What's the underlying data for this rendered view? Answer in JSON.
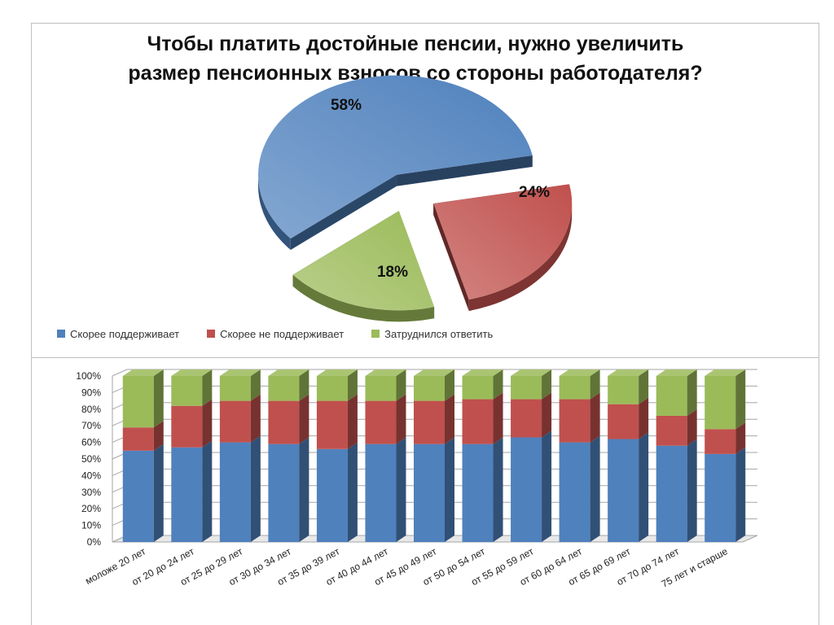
{
  "title_lines": [
    "Чтобы платить достойные пенсии, нужно увеличить",
    "размер пенсионных взносов со стороны работодателя?"
  ],
  "legend": [
    {
      "label": "Скорее поддерживает",
      "color": "#4F81BD"
    },
    {
      "label": "Скорее не поддерживает",
      "color": "#C0504D"
    },
    {
      "label": "Затруднился ответить",
      "color": "#9BBB59"
    }
  ],
  "chart_data": [
    {
      "type": "pie",
      "title": "Чтобы платить достойные пенсии, нужно увеличить размер пенсионных взносов со стороны работодателя?",
      "slices": [
        {
          "label": "Скорее поддерживает",
          "value": 58,
          "display": "58%",
          "color": "#4F81BD"
        },
        {
          "label": "Скорее не поддерживает",
          "value": 24,
          "display": "24%",
          "color": "#C0504D"
        },
        {
          "label": "Затруднился ответить",
          "value": 18,
          "display": "18%",
          "color": "#9BBB59"
        }
      ],
      "exploded": true,
      "legend_position": "bottom"
    },
    {
      "type": "bar",
      "stacked": "percent",
      "categories": [
        "моложе 20 лет",
        "от 20 до 24 лет",
        "от 25 до 29 лет",
        "от 30 до 34 лет",
        "от 35 до 39 лет",
        "от 40 до 44 лет",
        "от 45 до 49 лет",
        "от 50 до 54 лет",
        "от 55 до 59 лет",
        "от 60 до 64 лет",
        "от 65 до 69 лет",
        "от 70 до 74 лет",
        "75 лет и старше"
      ],
      "series": [
        {
          "name": "Скорее поддерживает",
          "color": "#4F81BD",
          "values": [
            55,
            57,
            60,
            59,
            56,
            59,
            59,
            59,
            63,
            60,
            62,
            58,
            53
          ]
        },
        {
          "name": "Скорее не поддерживает",
          "color": "#C0504D",
          "values": [
            14,
            25,
            25,
            26,
            29,
            26,
            26,
            27,
            23,
            26,
            21,
            18,
            15
          ]
        },
        {
          "name": "Затруднился ответить",
          "color": "#9BBB59",
          "values": [
            31,
            18,
            15,
            15,
            15,
            15,
            15,
            14,
            14,
            14,
            17,
            24,
            32
          ]
        }
      ],
      "y_ticks": [
        "0%",
        "10%",
        "20%",
        "30%",
        "40%",
        "50%",
        "60%",
        "70%",
        "80%",
        "90%",
        "100%"
      ],
      "ylim": [
        0,
        100
      ],
      "grid": true
    }
  ]
}
